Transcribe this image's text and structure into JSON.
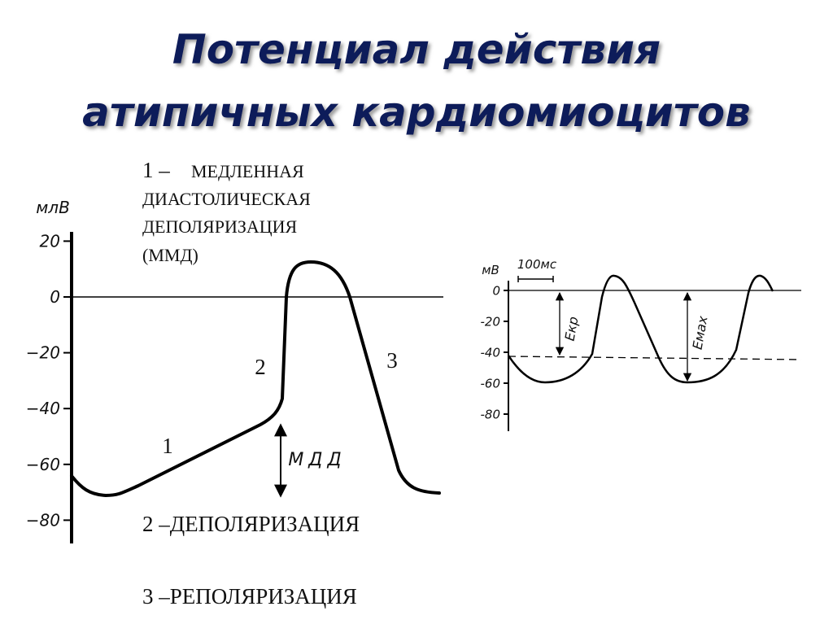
{
  "title": [
    "Потенциал действия",
    "атипичных кардиомиоцитов"
  ],
  "legend": {
    "item1": {
      "number": "1 –",
      "lines": [
        "МЕДЛЕННАЯ",
        "ДИАСТОЛИЧЕСКАЯ",
        "ДЕПОЛЯРИЗАЦИЯ",
        "(ММД)"
      ]
    },
    "item2": "2 –ДЕПОЛЯРИЗАЦИЯ",
    "item3": "3 –РЕПОЛЯРИЗАЦИЯ"
  },
  "left_chart": {
    "axis_label": "млВ",
    "yticks": [
      20,
      0,
      {
        "value": -20,
        "label": "−20"
      },
      {
        "value": -40,
        "label": "−40"
      },
      {
        "value": -60,
        "label": "−60"
      },
      {
        "value": -80,
        "label": "−80"
      }
    ],
    "phase_labels": [
      "1",
      "2",
      "3"
    ],
    "mdd_label": "МДД"
  },
  "right_chart": {
    "axis_label": "мВ",
    "scale_label": "100мс",
    "yticks": [
      0,
      {
        "value": -20,
        "label": "-20"
      },
      {
        "value": -40,
        "label": "-40"
      },
      {
        "value": -60,
        "label": "-60"
      },
      {
        "value": -80,
        "label": "-80"
      }
    ],
    "ekr_label": "Екр",
    "emax_label": "Емах"
  }
}
